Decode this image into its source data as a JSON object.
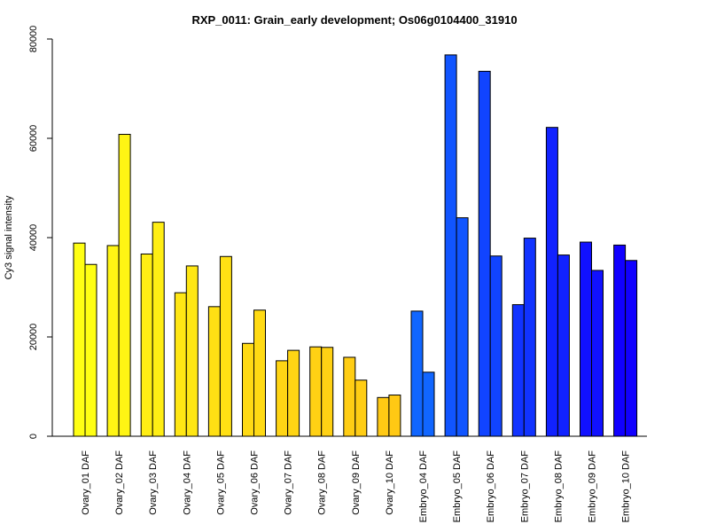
{
  "chart_data": {
    "type": "bar",
    "title": "RXP_0011: Grain_early development; Os06g0104400_31910",
    "xlabel": "",
    "ylabel": "Cy3 signal intensity",
    "ylim": [
      0,
      80000
    ],
    "yticks": [
      0,
      20000,
      40000,
      60000,
      80000
    ],
    "grid": false,
    "categories": [
      "Ovary_01 DAF",
      "Ovary_02 DAF",
      "Ovary_03 DAF",
      "Ovary_04 DAF",
      "Ovary_05 DAF",
      "Ovary_06 DAF",
      "Ovary_07 DAF",
      "Ovary_08 DAF",
      "Ovary_09 DAF",
      "Ovary_10 DAF",
      "Embryo_04 DAF",
      "Embryo_05 DAF",
      "Embryo_06 DAF",
      "Embryo_07 DAF",
      "Embryo_08 DAF",
      "Embryo_09 DAF",
      "Embryo_10 DAF"
    ],
    "series": [
      {
        "values": [
          38900,
          38400,
          36700,
          28900,
          26100,
          18700,
          15200,
          18000,
          15900,
          7800,
          25200,
          76800,
          73500,
          26500,
          62200,
          39100,
          38500
        ]
      },
      {
        "values": [
          34600,
          60800,
          43100,
          34300,
          36200,
          25400,
          17300,
          17900,
          11300,
          8300,
          12900,
          44000,
          36300,
          39900,
          36500,
          33400,
          35400
        ]
      }
    ],
    "bar_colors": [
      "#FFFF14",
      "#FFF514",
      "#FFEE14",
      "#FFE714",
      "#FFE014",
      "#FFDA14",
      "#FFD514",
      "#FFD114",
      "#FFCD14",
      "#FFC914",
      "#1166FF",
      "#1155FF",
      "#1144FF",
      "#1133FF",
      "#1122FF",
      "#1111FF",
      "#1100FF"
    ]
  }
}
